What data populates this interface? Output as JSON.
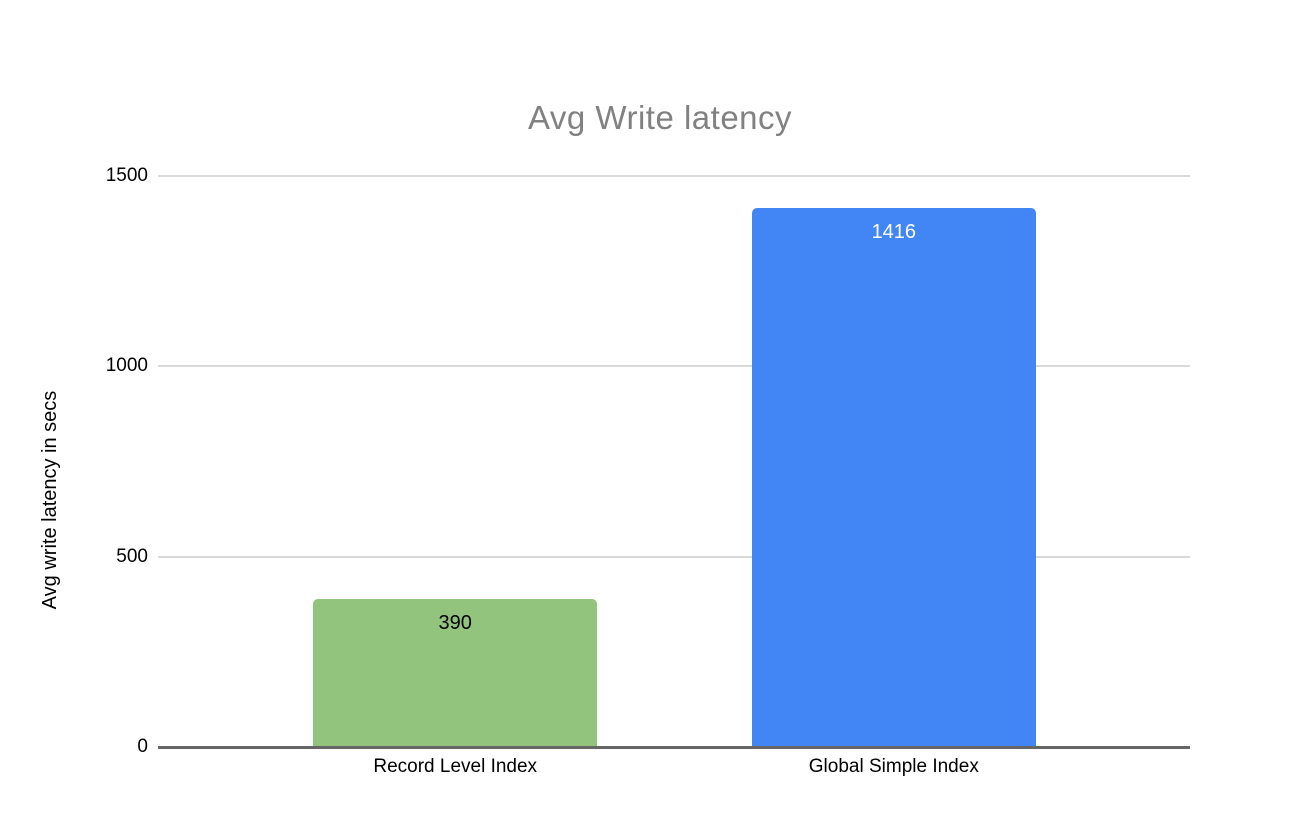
{
  "chart_data": {
    "type": "bar",
    "title": "Avg Write latency",
    "categories": [
      "Record Level Index",
      "Global Simple Index"
    ],
    "values": [
      390,
      1416
    ],
    "bar_colors": [
      "#93c47d",
      "#4285f4"
    ],
    "value_label_colors": [
      "#000000",
      "#ffffff"
    ],
    "xlabel": "",
    "ylabel": "Avg write latency in secs",
    "ylim": [
      0,
      1500
    ],
    "yticks": [
      0,
      500,
      1000,
      1500
    ],
    "grid": true,
    "legend": "none",
    "colors": {
      "title_text": "#818181",
      "axis_text": "#000000",
      "gridline": "#d9d9d9",
      "baseline": "#666666",
      "background": "#ffffff"
    }
  }
}
